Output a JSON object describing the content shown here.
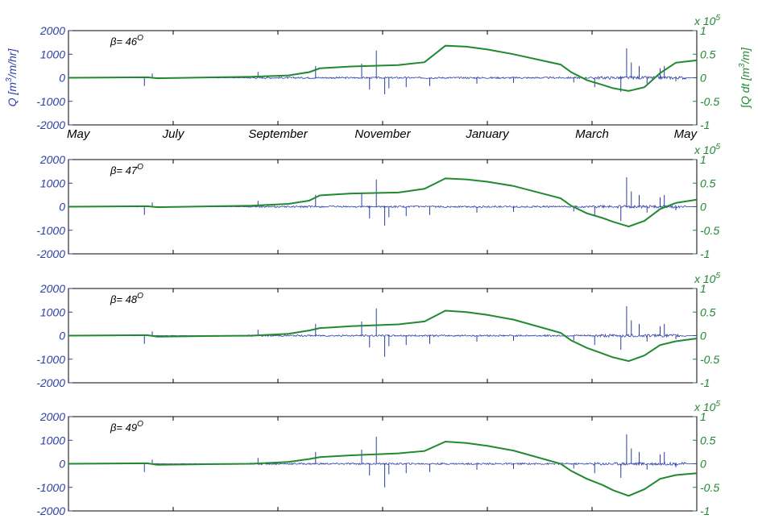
{
  "colors": {
    "left": "#2b3ea8",
    "right": "#1f8a2f",
    "axis": "#000000"
  },
  "chart_data": [
    {
      "type": "line",
      "annotation": "β= 46",
      "annotation_sup": "O",
      "xlabel": "",
      "ylabel": "Q [m3/m/hr]",
      "ylabel_parts": {
        "pre": "Q [m",
        "sup": "3",
        "post": "/m/hr]"
      },
      "y2label": "∫Q dt [m3/m]",
      "y2label_parts": {
        "pre": "∫Q dt [m",
        "sup": "3",
        "post": "/m]"
      },
      "xlim": [
        0,
        12
      ],
      "ylim": [
        -2000,
        2000
      ],
      "y2lim": [
        -1,
        1
      ],
      "yticks": [
        "2000",
        "1000",
        "0",
        "-1000",
        "-2000"
      ],
      "y2ticks": [
        "1",
        "0.5",
        "0",
        "-0.5",
        "-1"
      ],
      "y2_multiplier": "x 10",
      "y2_multiplier_exp": "5",
      "xtick_labels": [
        "May",
        "July",
        "September",
        "November",
        "January",
        "March",
        "May"
      ],
      "series": [
        {
          "axis": "right",
          "x": [
            0,
            1.5,
            1.7,
            2.5,
            3.5,
            4.2,
            4.6,
            4.8,
            5.1,
            5.4,
            6.3,
            6.8,
            7.2,
            7.6,
            8.0,
            8.5,
            9.4,
            9.6,
            9.9,
            10.2,
            10.4,
            10.7,
            11.0,
            11.3,
            11.6,
            12.0
          ],
          "y": [
            0,
            0.01,
            -0.01,
            0.005,
            0.02,
            0.05,
            0.12,
            0.2,
            0.22,
            0.24,
            0.27,
            0.33,
            0.68,
            0.66,
            0.6,
            0.5,
            0.28,
            0.12,
            -0.05,
            -0.15,
            -0.22,
            -0.28,
            -0.2,
            0.1,
            0.32,
            0.37
          ]
        },
        {
          "axis": "left",
          "spikes": [
            [
              1.45,
              -350
            ],
            [
              1.6,
              180
            ],
            [
              3.62,
              250
            ],
            [
              4.72,
              500
            ],
            [
              5.6,
              600
            ],
            [
              5.75,
              -500
            ],
            [
              5.88,
              1150
            ],
            [
              6.04,
              -700
            ],
            [
              6.12,
              -450
            ],
            [
              6.45,
              -400
            ],
            [
              6.9,
              -350
            ],
            [
              7.8,
              -250
            ],
            [
              8.5,
              -220
            ],
            [
              9.65,
              -200
            ],
            [
              10.05,
              -400
            ],
            [
              10.55,
              -600
            ],
            [
              10.66,
              1250
            ],
            [
              10.75,
              650
            ],
            [
              10.9,
              500
            ],
            [
              11.05,
              -250
            ],
            [
              11.3,
              400
            ],
            [
              11.38,
              500
            ],
            [
              11.6,
              -150
            ]
          ]
        }
      ]
    },
    {
      "type": "line",
      "annotation": "β= 47",
      "annotation_sup": "O",
      "xlabel": "",
      "ylabel": "",
      "y2label": "",
      "xlim": [
        0,
        12
      ],
      "ylim": [
        -2000,
        2000
      ],
      "y2lim": [
        -1,
        1
      ],
      "yticks": [
        "2000",
        "1000",
        "0",
        "-1000",
        "-2000"
      ],
      "y2ticks": [
        "1",
        "0.5",
        "0",
        "-0.5",
        "-1"
      ],
      "y2_multiplier": "x 10",
      "y2_multiplier_exp": "5",
      "xtick_labels": [],
      "series": [
        {
          "axis": "right",
          "x": [
            0,
            1.5,
            1.7,
            2.5,
            3.5,
            4.2,
            4.6,
            4.8,
            5.1,
            5.4,
            6.3,
            6.8,
            7.2,
            7.6,
            8.0,
            8.5,
            9.4,
            9.6,
            9.9,
            10.2,
            10.4,
            10.7,
            11.0,
            11.3,
            11.6,
            12.0
          ],
          "y": [
            0,
            0.01,
            -0.01,
            0.005,
            0.02,
            0.06,
            0.13,
            0.24,
            0.26,
            0.28,
            0.3,
            0.38,
            0.6,
            0.58,
            0.53,
            0.44,
            0.18,
            0.02,
            -0.14,
            -0.24,
            -0.32,
            -0.42,
            -0.3,
            -0.05,
            0.08,
            0.15
          ]
        },
        {
          "axis": "left",
          "spikes": [
            [
              1.45,
              -350
            ],
            [
              1.6,
              180
            ],
            [
              3.62,
              250
            ],
            [
              4.72,
              500
            ],
            [
              5.6,
              600
            ],
            [
              5.75,
              -500
            ],
            [
              5.88,
              1150
            ],
            [
              6.04,
              -800
            ],
            [
              6.12,
              -450
            ],
            [
              6.45,
              -400
            ],
            [
              6.9,
              -350
            ],
            [
              7.8,
              -250
            ],
            [
              8.5,
              -220
            ],
            [
              9.65,
              -200
            ],
            [
              10.05,
              -400
            ],
            [
              10.55,
              -600
            ],
            [
              10.66,
              1250
            ],
            [
              10.75,
              650
            ],
            [
              10.9,
              500
            ],
            [
              11.05,
              -250
            ],
            [
              11.3,
              400
            ],
            [
              11.38,
              500
            ],
            [
              11.6,
              -150
            ]
          ]
        }
      ]
    },
    {
      "type": "line",
      "annotation": "β= 48",
      "annotation_sup": "O",
      "xlabel": "",
      "ylabel": "",
      "y2label": "",
      "xlim": [
        0,
        12
      ],
      "ylim": [
        -2000,
        2000
      ],
      "y2lim": [
        -1,
        1
      ],
      "yticks": [
        "2000",
        "1000",
        "0",
        "-1000",
        "-2000"
      ],
      "y2ticks": [
        "1",
        "0.5",
        "0",
        "-0.5",
        "-1"
      ],
      "y2_multiplier": "x 10",
      "y2_multiplier_exp": "5",
      "xtick_labels": [],
      "series": [
        {
          "axis": "right",
          "x": [
            0,
            1.5,
            1.7,
            2.5,
            3.5,
            4.2,
            4.6,
            4.8,
            5.1,
            5.4,
            6.3,
            6.8,
            7.2,
            7.6,
            8.0,
            8.5,
            9.4,
            9.6,
            9.9,
            10.2,
            10.4,
            10.7,
            11.0,
            11.3,
            11.6,
            12.0
          ],
          "y": [
            0,
            0.01,
            -0.02,
            -0.01,
            0.0,
            0.04,
            0.11,
            0.16,
            0.18,
            0.2,
            0.24,
            0.3,
            0.53,
            0.5,
            0.44,
            0.34,
            0.06,
            -0.1,
            -0.26,
            -0.38,
            -0.46,
            -0.54,
            -0.42,
            -0.2,
            -0.12,
            -0.06
          ]
        },
        {
          "axis": "left",
          "spikes": [
            [
              1.45,
              -350
            ],
            [
              1.6,
              180
            ],
            [
              3.62,
              250
            ],
            [
              4.72,
              500
            ],
            [
              5.6,
              600
            ],
            [
              5.75,
              -500
            ],
            [
              5.88,
              1150
            ],
            [
              6.04,
              -900
            ],
            [
              6.12,
              -450
            ],
            [
              6.45,
              -400
            ],
            [
              6.9,
              -350
            ],
            [
              7.8,
              -250
            ],
            [
              8.5,
              -220
            ],
            [
              9.65,
              -200
            ],
            [
              10.05,
              -400
            ],
            [
              10.55,
              -600
            ],
            [
              10.66,
              1250
            ],
            [
              10.75,
              650
            ],
            [
              10.9,
              500
            ],
            [
              11.05,
              -250
            ],
            [
              11.3,
              400
            ],
            [
              11.38,
              500
            ],
            [
              11.6,
              -150
            ]
          ]
        }
      ]
    },
    {
      "type": "line",
      "annotation": "β= 49",
      "annotation_sup": "O",
      "xlabel": "",
      "ylabel": "",
      "y2label": "",
      "xlim": [
        0,
        12
      ],
      "ylim": [
        -2000,
        2000
      ],
      "y2lim": [
        -1,
        1
      ],
      "yticks": [
        "2000",
        "1000",
        "0",
        "-1000",
        "-2000"
      ],
      "y2ticks": [
        "1",
        "0.5",
        "0",
        "-0.5",
        "-1"
      ],
      "y2_multiplier": "x 10",
      "y2_multiplier_exp": "5",
      "xtick_labels": [],
      "series": [
        {
          "axis": "right",
          "x": [
            0,
            1.5,
            1.7,
            2.5,
            3.5,
            4.2,
            4.6,
            4.8,
            5.1,
            5.4,
            6.3,
            6.8,
            7.2,
            7.6,
            8.0,
            8.5,
            9.4,
            9.6,
            9.9,
            10.2,
            10.4,
            10.7,
            11.0,
            11.3,
            11.6,
            12.0
          ],
          "y": [
            0,
            0.01,
            -0.02,
            -0.01,
            0.0,
            0.04,
            0.1,
            0.14,
            0.16,
            0.18,
            0.22,
            0.27,
            0.47,
            0.44,
            0.38,
            0.28,
            0.0,
            -0.15,
            -0.32,
            -0.45,
            -0.56,
            -0.68,
            -0.54,
            -0.32,
            -0.24,
            -0.2
          ]
        },
        {
          "axis": "left",
          "spikes": [
            [
              1.45,
              -350
            ],
            [
              1.6,
              180
            ],
            [
              3.62,
              250
            ],
            [
              4.72,
              500
            ],
            [
              5.6,
              600
            ],
            [
              5.75,
              -500
            ],
            [
              5.88,
              1150
            ],
            [
              6.04,
              -1000
            ],
            [
              6.12,
              -450
            ],
            [
              6.45,
              -400
            ],
            [
              6.9,
              -350
            ],
            [
              7.8,
              -250
            ],
            [
              8.5,
              -220
            ],
            [
              9.65,
              -200
            ],
            [
              10.05,
              -400
            ],
            [
              10.55,
              -600
            ],
            [
              10.66,
              1250
            ],
            [
              10.75,
              650
            ],
            [
              10.9,
              500
            ],
            [
              11.05,
              -250
            ],
            [
              11.3,
              400
            ],
            [
              11.38,
              500
            ],
            [
              11.6,
              -150
            ]
          ]
        }
      ]
    }
  ]
}
